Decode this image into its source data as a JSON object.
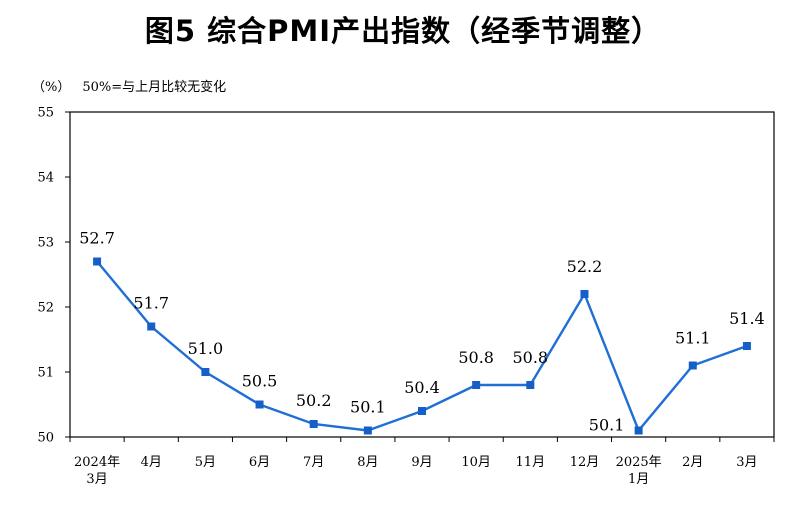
{
  "title": "图5  综合PMI产出指数（经季节调整）",
  "unit_label": "（%）",
  "baseline_note": "50%=与上月比较无变化",
  "colors": {
    "line": "#1f6fd6",
    "marker": "#1560c8",
    "axis": "#000000"
  },
  "chart_data": {
    "type": "line",
    "title": "图5  综合PMI产出指数（经季节调整）",
    "ylabel": "（%）",
    "xlabel": "",
    "ylim": [
      50,
      55
    ],
    "yticks": [
      50,
      51,
      52,
      53,
      54,
      55
    ],
    "grid": false,
    "legend": "none",
    "categories": [
      [
        "2024年",
        "3月"
      ],
      [
        "4月"
      ],
      [
        "5月"
      ],
      [
        "6月"
      ],
      [
        "7月"
      ],
      [
        "8月"
      ],
      [
        "9月"
      ],
      [
        "10月"
      ],
      [
        "11月"
      ],
      [
        "12月"
      ],
      [
        "2025年",
        "1月"
      ],
      [
        "2月"
      ],
      [
        "3月"
      ]
    ],
    "values": [
      52.7,
      51.7,
      51.0,
      50.5,
      50.2,
      50.1,
      50.4,
      50.8,
      50.8,
      52.2,
      50.1,
      51.1,
      51.4
    ],
    "data_labels": [
      "52.7",
      "51.7",
      "51.0",
      "50.5",
      "50.2",
      "50.1",
      "50.4",
      "50.8",
      "50.8",
      "52.2",
      "50.1",
      "51.1",
      "51.4"
    ]
  }
}
